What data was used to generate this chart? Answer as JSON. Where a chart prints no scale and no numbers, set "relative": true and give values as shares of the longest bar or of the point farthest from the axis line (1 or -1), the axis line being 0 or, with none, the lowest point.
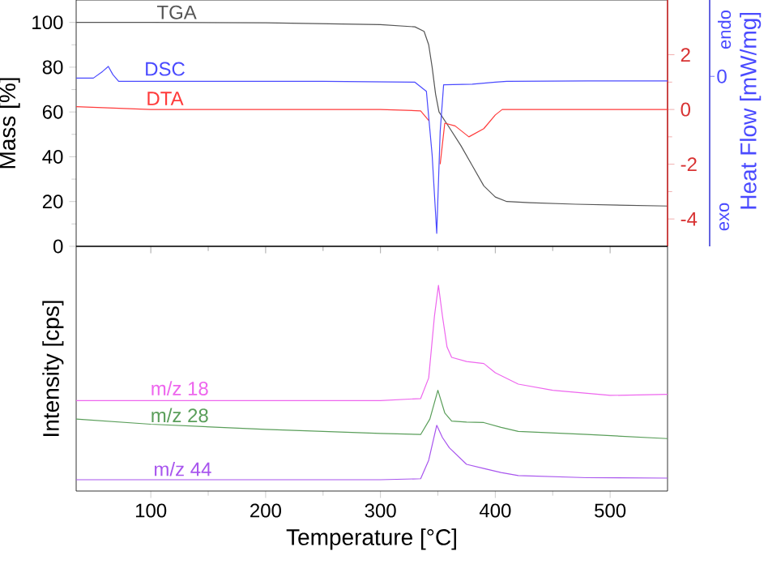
{
  "chart_data": [
    {
      "type": "line",
      "ylabel": "Mass [%]",
      "xlim": [
        35,
        550
      ],
      "xticks": [
        100,
        200,
        300,
        400,
        500
      ],
      "tick_labels": "y",
      "ylim": [
        0,
        110
      ],
      "yticks": [
        0,
        20,
        40,
        60,
        80,
        100
      ],
      "y2lim": [
        -5,
        4
      ],
      "y2ticks": [
        -4,
        -2,
        0,
        2
      ],
      "series": [
        {
          "name": "TGA",
          "color": "#555555",
          "x": [
            35,
            100,
            200,
            300,
            330,
            338,
            342,
            345,
            348,
            351,
            360,
            370,
            380,
            390,
            400,
            410,
            430,
            470,
            550
          ],
          "values": [
            100,
            100,
            99.8,
            99,
            98,
            96,
            90,
            80,
            68,
            60,
            53,
            45,
            36,
            27,
            22,
            20,
            19.5,
            18.8,
            18
          ]
        },
        {
          "name": "DTA",
          "color": "#ff3b3b",
          "axis": "y2",
          "x": [
            35,
            100,
            200,
            300,
            335,
            342,
            346,
            349,
            352,
            356,
            365,
            377,
            390,
            400,
            406,
            450,
            550
          ],
          "values": [
            0.1,
            0,
            0,
            0,
            -0.05,
            -0.4,
            null,
            null,
            -2,
            -0.5,
            -0.6,
            -1,
            -0.7,
            -0.2,
            0,
            0,
            0
          ]
        }
      ]
    },
    {
      "type": "line",
      "relative": true,
      "ylabel": "Heat Flow [mW/mg]",
      "annotations": [
        "0",
        "endo",
        "exo"
      ],
      "xlim": [
        35,
        550
      ],
      "xticks": [
        100,
        200,
        300,
        400,
        500
      ],
      "tick_labels": false,
      "series": [
        {
          "name": "DSC",
          "color": "#4a4aff",
          "x": [
            35,
            50,
            58,
            63,
            67,
            72,
            150,
            250,
            330,
            340,
            345,
            349,
            352,
            355,
            380,
            400,
            410,
            480,
            550
          ],
          "values": [
            0.935,
            0.935,
            0.972,
            1.0,
            0.954,
            0.917,
            0.917,
            0.917,
            0.912,
            0.861,
            0.508,
            0.072,
            0.638,
            0.898,
            0.901,
            0.912,
            0.917,
            0.919,
            0.919
          ]
        }
      ]
    },
    {
      "type": "line",
      "relative": true,
      "xlabel": "Temperature [°C]",
      "ylabel": "Intensity [cps]",
      "xlim": [
        35,
        550
      ],
      "xticks": [
        100,
        200,
        300,
        400,
        500
      ],
      "tick_labels": "x",
      "series": [
        {
          "name": "m/z 18",
          "color": "#ee66ee",
          "x": [
            35,
            100,
            200,
            300,
            335,
            342,
            347,
            350.5,
            354,
            358,
            362,
            375,
            390,
            400,
            420,
            450,
            500,
            550
          ],
          "values": [
            0.44,
            0.44,
            0.44,
            0.44,
            0.45,
            0.55,
            0.85,
            1.0,
            0.85,
            0.7,
            0.65,
            0.63,
            0.62,
            0.575,
            0.52,
            0.49,
            0.465,
            0.47
          ]
        },
        {
          "name": "m/z 28",
          "color": "#5a9e5a",
          "x": [
            35,
            100,
            200,
            300,
            335,
            343,
            350,
            356,
            362,
            375,
            390,
            405,
            420,
            480,
            550
          ],
          "values": [
            0.35,
            0.325,
            0.3,
            0.28,
            0.275,
            0.35,
            0.49,
            0.38,
            0.34,
            0.335,
            0.333,
            0.31,
            0.29,
            0.275,
            0.255
          ]
        },
        {
          "name": "m/z 44",
          "color": "#a855ee",
          "x": [
            35,
            100,
            200,
            300,
            335,
            342,
            349,
            354,
            360,
            375,
            390,
            405,
            420,
            480,
            550
          ],
          "values": [
            0.055,
            0.055,
            0.055,
            0.055,
            0.06,
            0.15,
            0.32,
            0.26,
            0.21,
            0.13,
            0.11,
            0.09,
            0.075,
            0.065,
            0.063
          ]
        }
      ]
    }
  ]
}
